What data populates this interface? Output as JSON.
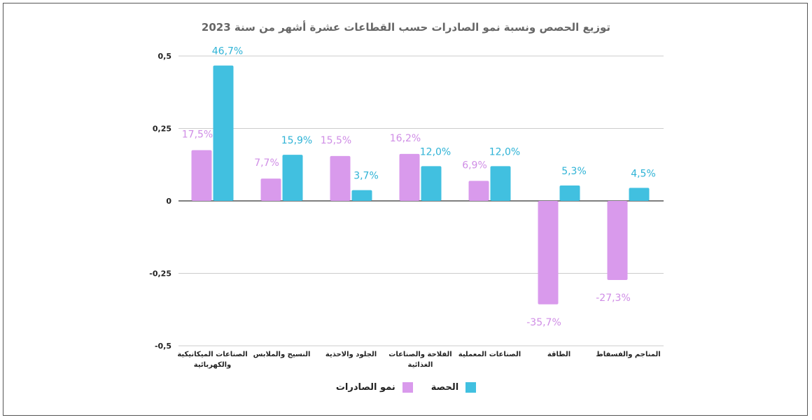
{
  "chart_data": {
    "type": "bar",
    "title": "توزيع الحصص ونسبة نمو الصادرات حسب القطاعات عشرة أشهر من سنة 2023",
    "categories": [
      "الصناعات الميكانيكية والكهربائية",
      "النسيج والملابس",
      "الجلود والاحذية",
      "الفلاحة والصناعات الغذائية",
      "الصناعات المعملية",
      "الطاقة",
      "المناجم والفسفاط"
    ],
    "series": [
      {
        "name": "نمو الصادرات",
        "color": "#d99aec",
        "label_color": "#d08ee6",
        "values": [
          0.175,
          0.077,
          0.155,
          0.162,
          0.069,
          -0.357,
          -0.273
        ],
        "labels": [
          "17,5%",
          "7,7%",
          "15,5%",
          "16,2%",
          "6,9%",
          "-35,7%",
          "-27,3%"
        ]
      },
      {
        "name": "الحصة",
        "color": "#41c0e0",
        "label_color": "#2fb3d6",
        "values": [
          0.467,
          0.159,
          0.037,
          0.12,
          0.12,
          0.053,
          0.045
        ],
        "labels": [
          "46,7%",
          "15,9%",
          "3,7%",
          "12,0%",
          "12,0%",
          "5,3%",
          "4,5%"
        ]
      }
    ],
    "ylim": [
      -0.5,
      0.5
    ],
    "yticks": [
      0.5,
      0.25,
      0,
      -0.25,
      -0.5
    ],
    "ytick_labels": [
      "0,5",
      "0,25",
      "0",
      "-0,25",
      "-0,5"
    ],
    "grid": true,
    "legend": "bottom"
  }
}
